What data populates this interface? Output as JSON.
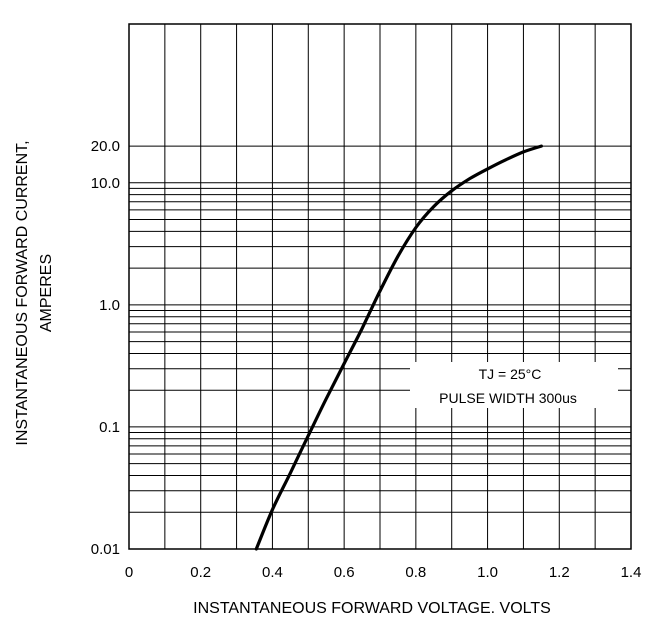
{
  "chart_data": {
    "type": "line",
    "title": "",
    "xlabel": "INSTANTANEOUS FORWARD VOLTAGE. VOLTS",
    "ylabel_line1": "INSTANTANEOUS FORWARD CURRENT,",
    "ylabel_line2": "AMPERES",
    "xlim": [
      0,
      1.4
    ],
    "ylim": [
      0.01,
      20.0
    ],
    "yscale": "log",
    "grid": true,
    "x_ticks": [
      "0",
      "0.2",
      "0.4",
      "0.6",
      "0.8",
      "1.0",
      "1.2",
      "1.4"
    ],
    "y_ticks": [
      "0.01",
      "0.1",
      "1.0",
      "10.0",
      "20.0"
    ],
    "annotation_line1": "TJ = 25°C",
    "annotation_line2": "PULSE WIDTH 300us",
    "line_color": "#000000",
    "grid_color": "#000000",
    "series": [
      {
        "x": [
          0.355,
          0.4,
          0.45,
          0.5,
          0.55,
          0.6,
          0.65,
          0.7,
          0.75,
          0.8,
          0.85,
          0.9,
          0.95,
          1.0,
          1.05,
          1.1,
          1.15
        ],
        "y": [
          0.01,
          0.021,
          0.042,
          0.085,
          0.17,
          0.33,
          0.64,
          1.3,
          2.5,
          4.3,
          6.4,
          8.6,
          10.8,
          13.0,
          15.4,
          17.9,
          20.0
        ]
      }
    ]
  }
}
